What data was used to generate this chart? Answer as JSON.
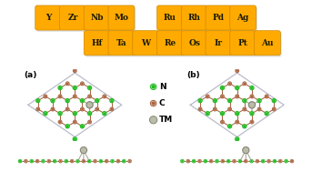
{
  "element_row1": [
    "Y",
    "Zr",
    "Nb",
    "Mo",
    "",
    "Ru",
    "Rh",
    "Pd",
    "Ag"
  ],
  "element_row2": [
    "",
    "Hf",
    "Ta",
    "W",
    "Re",
    "Os",
    "Ir",
    "Pt",
    "Au"
  ],
  "box_color": "#FFAA00",
  "box_edge_color": "#CC8800",
  "text_color": "#1a1a00",
  "N_color": "#22BB22",
  "C_color": "#AA6644",
  "TM_color": "#BBBBAA",
  "TM_edge_color": "#888877",
  "bond_color": "#AA6644",
  "cell_color": "#BBBBCC",
  "shadow_color": "#CCCCCC"
}
